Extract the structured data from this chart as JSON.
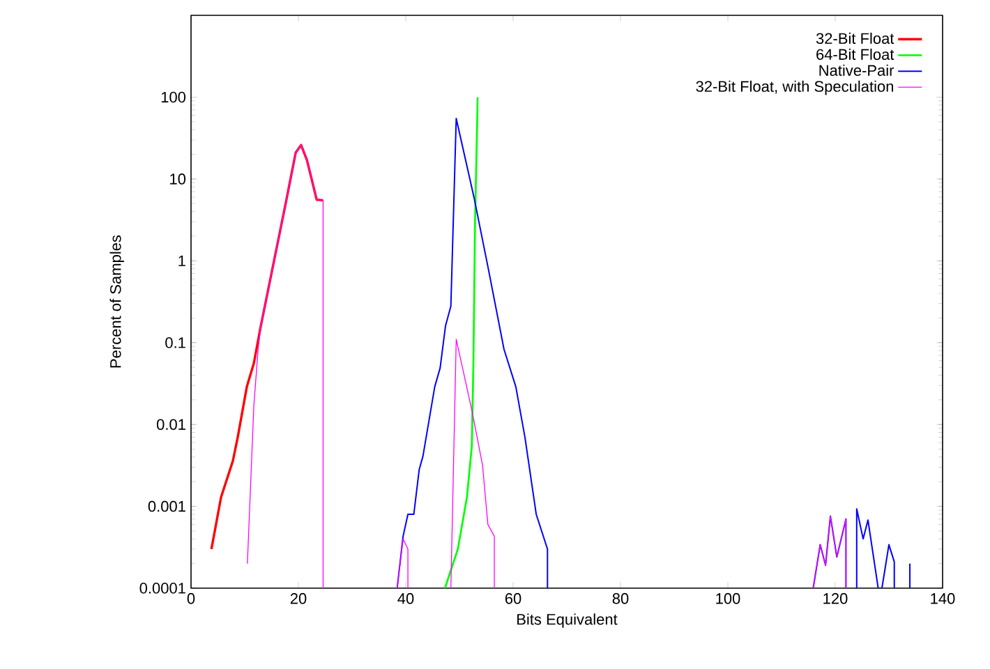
{
  "chart_data": {
    "type": "line",
    "xlabel": "Bits Equivalent",
    "ylabel": "Percent of Samples",
    "log": "y",
    "legend": "top right",
    "grid": false,
    "marker": "none",
    "xlim": [
      0,
      140
    ],
    "xticks": [
      0,
      20,
      40,
      60,
      80,
      100,
      120,
      140
    ],
    "ylim": [
      0.0001,
      1000
    ],
    "yticks": [
      0.0001,
      0.001,
      0.01,
      0.1,
      1,
      10,
      100
    ],
    "series": [
      {
        "name": "32-Bit Float",
        "color": "#ff0000",
        "x": [
          3.8,
          5.6,
          7.8,
          8.7,
          10.4,
          11.7,
          13,
          17.7,
          19.5,
          20.5,
          21.6,
          23.4,
          24.6
        ],
        "values": [
          0.0003,
          0.0013,
          0.0036,
          0.007,
          0.029,
          0.056,
          0.16,
          5.3,
          21,
          26,
          17,
          5.6,
          5.5
        ]
      },
      {
        "name": "64-Bit Float",
        "color": "#00ff00",
        "x": [
          47.3,
          49.7,
          51.4,
          52.3,
          52.6,
          52.9,
          53.4
        ],
        "values": [
          0.0001,
          0.0003,
          0.0013,
          0.0054,
          0.056,
          2.8,
          100
        ]
      },
      {
        "name": "Native-Pair",
        "color": "#0000ff",
        "x": [
          38.4,
          39.5,
          40.4,
          41.5,
          42.5,
          43.2,
          45.4,
          46.4,
          47.4,
          48.4,
          49.4,
          52.7,
          55.3,
          58.3,
          60.5,
          62.2,
          64.3,
          66.4,
          66.4,
          null,
          115.9,
          117.2,
          118.2,
          119.1,
          120.3,
          122,
          122,
          null,
          124,
          124,
          125.2,
          126.1,
          128,
          128.7,
          130,
          131,
          131,
          null,
          133.9,
          133.9
        ],
        "values": [
          0.0001,
          0.00043,
          0.0008,
          0.0008,
          0.0028,
          0.0041,
          0.029,
          0.049,
          0.16,
          0.28,
          55,
          6,
          0.85,
          0.083,
          0.029,
          0.007,
          0.0008,
          0.0003,
          0.0001,
          null,
          0.0001,
          0.00034,
          0.00019,
          0.00076,
          0.00024,
          0.0007,
          0.0001,
          null,
          0.0001,
          0.00093,
          0.0004,
          0.00068,
          0.0001,
          0.0001,
          0.00034,
          0.00021,
          0.0001,
          null,
          0.0001,
          0.0002
        ]
      },
      {
        "name": "32-Bit Float, with Speculation",
        "color": "#ff00ff",
        "x": [
          10.5,
          11.7,
          12.5,
          13,
          17.7,
          19.5,
          20.5,
          21.6,
          23.4,
          24.6,
          24.6,
          null,
          38.4,
          39.5,
          40.4,
          40.4,
          null,
          48.4,
          49.4,
          52.3,
          54.3,
          55.3,
          56.5,
          56.5,
          null,
          115.9,
          117.2,
          118.2,
          119.1,
          120.3,
          122,
          122
        ],
        "values": [
          0.0002,
          0.017,
          0.083,
          0.16,
          5.3,
          21,
          26,
          17,
          5.6,
          5.5,
          0.0001,
          null,
          0.0001,
          0.0004,
          0.0003,
          0.0001,
          null,
          0.0001,
          0.11,
          0.015,
          0.0032,
          0.0006,
          0.00043,
          0.0001,
          null,
          0.0001,
          0.00034,
          0.00019,
          0.00076,
          0.00024,
          0.0007,
          0.0001
        ]
      }
    ]
  }
}
